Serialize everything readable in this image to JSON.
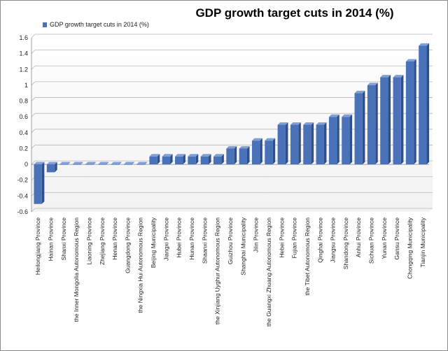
{
  "chart_data": {
    "type": "bar",
    "title": "GDP growth target cuts in 2014 (%)",
    "xlabel": "",
    "ylabel": "",
    "ylim": [
      -0.6,
      1.6
    ],
    "ytick_step": 0.2,
    "grid": true,
    "legend_position": "top-left",
    "categories": [
      "Heilongjiang Province",
      "Hainan Province",
      "Shanxi Province",
      "the Inner Mongolia Autonomous Region",
      "Liaoning Province",
      "Zhejiang Province",
      "Henan Province",
      "Guangdong Province",
      "the Ningxia Hui Autonomous Region",
      "Beijing Municipality",
      "Jiangxi Province",
      "Hubei Province",
      "Hunan Province",
      "Shaanxi Province",
      "the Xinjiang Uyghur Autonomous Region",
      "Guizhou Province",
      "Shanghai Municipality",
      "Jilin Province",
      "the Guangxi Zhuang Autonomous Region",
      "Hebei Province",
      "Fujian Province",
      "the Tibet Autonomous Region",
      "Qinghai Province",
      "Jiangsu Province",
      "Shandong Province",
      "Anhui Province",
      "Sichuan Province",
      "Yunan Province",
      "Gansu Province",
      "Chongqing Municipality",
      "Tianjin Municipality"
    ],
    "series": [
      {
        "name": "GDP growth target cuts in 2014 (%)",
        "color": "#4a72b8",
        "values": [
          -0.5,
          -0.1,
          0,
          0,
          0,
          0,
          0,
          0,
          0,
          0.1,
          0.1,
          0.1,
          0.1,
          0.1,
          0.1,
          0.2,
          0.2,
          0.3,
          0.3,
          0.5,
          0.5,
          0.5,
          0.5,
          0.6,
          0.6,
          0.9,
          1.0,
          1.1,
          1.1,
          1.3,
          1.5
        ]
      }
    ],
    "ytick_labels": [
      "-0.6",
      "-0.4",
      "-0.2",
      "0",
      "0.2",
      "0.4",
      "0.6",
      "0.8",
      "1",
      "1.2",
      "1.4",
      "1.6"
    ]
  }
}
